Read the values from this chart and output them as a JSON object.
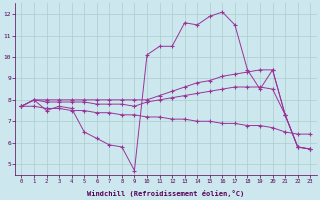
{
  "xlabel": "Windchill (Refroidissement éolien,°C)",
  "x_hours": [
    0,
    1,
    2,
    3,
    4,
    5,
    6,
    7,
    8,
    9,
    10,
    11,
    12,
    13,
    14,
    15,
    16,
    17,
    18,
    19,
    20,
    21,
    22,
    23
  ],
  "line1": [
    7.7,
    8.0,
    7.5,
    7.7,
    7.6,
    6.5,
    6.2,
    5.9,
    5.8,
    4.7,
    10.1,
    10.5,
    10.5,
    11.6,
    11.5,
    11.9,
    12.1,
    11.5,
    9.4,
    8.5,
    9.4,
    7.3,
    5.8,
    5.7
  ],
  "line2": [
    7.7,
    8.0,
    8.0,
    8.0,
    8.0,
    8.0,
    8.0,
    8.0,
    8.0,
    8.0,
    8.0,
    8.2,
    8.4,
    8.6,
    8.8,
    8.9,
    9.1,
    9.2,
    9.3,
    9.4,
    9.4,
    7.3,
    5.8,
    5.7
  ],
  "line3": [
    7.7,
    8.0,
    7.9,
    7.9,
    7.9,
    7.9,
    7.8,
    7.8,
    7.8,
    7.7,
    7.9,
    8.0,
    8.1,
    8.2,
    8.3,
    8.4,
    8.5,
    8.6,
    8.6,
    8.6,
    8.5,
    7.3,
    5.8,
    5.7
  ],
  "line4": [
    7.7,
    7.7,
    7.6,
    7.6,
    7.5,
    7.5,
    7.4,
    7.4,
    7.3,
    7.3,
    7.2,
    7.2,
    7.1,
    7.1,
    7.0,
    7.0,
    6.9,
    6.9,
    6.8,
    6.8,
    6.7,
    6.5,
    6.4,
    6.4
  ],
  "bg_color": "#cce8ee",
  "grid_color": "#aacccc",
  "line_color": "#993399",
  "ylim": [
    4.5,
    12.5
  ],
  "xlim": [
    -0.5,
    23.5
  ],
  "yticks": [
    5,
    6,
    7,
    8,
    9,
    10,
    11,
    12
  ]
}
